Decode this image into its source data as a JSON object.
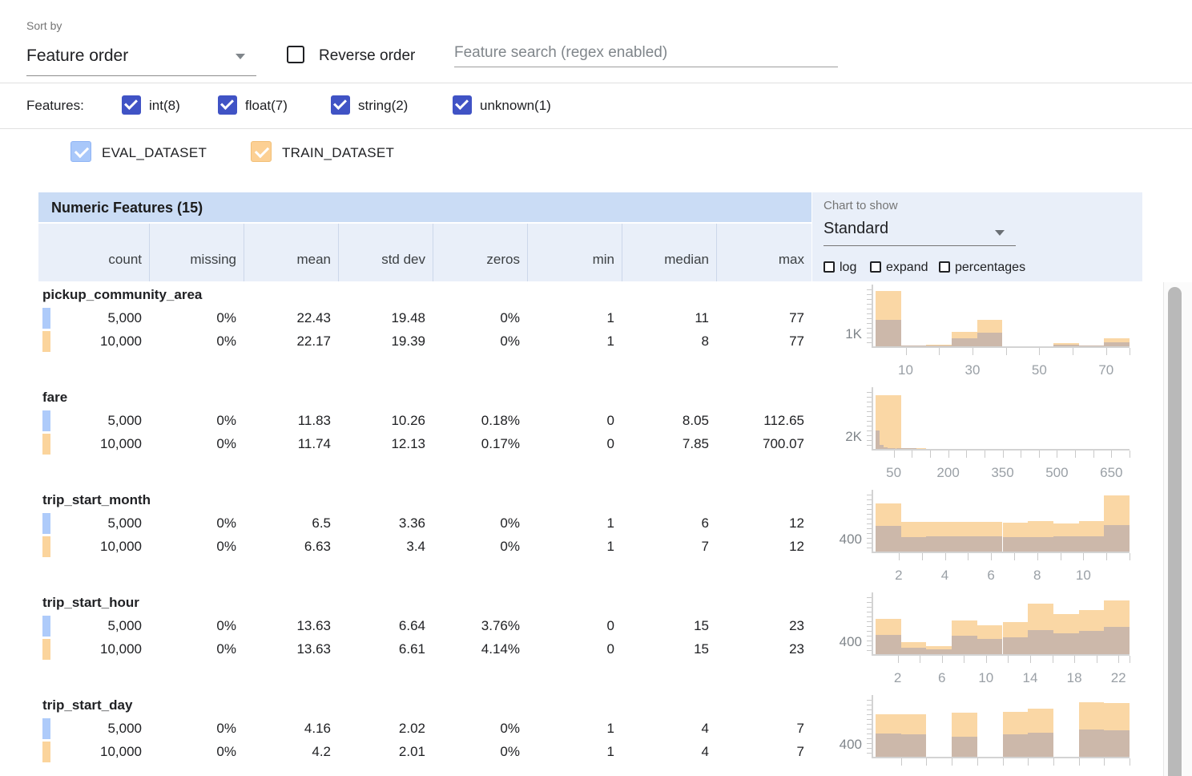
{
  "toolbar": {
    "sort_by_label": "Sort by",
    "sort_by_value": "Feature order",
    "reverse_order_label": "Reverse order",
    "search_placeholder": "Feature search (regex enabled)"
  },
  "features_filter": {
    "label": "Features:",
    "types": [
      {
        "label": "int(8)",
        "checked": true
      },
      {
        "label": "float(7)",
        "checked": true
      },
      {
        "label": "string(2)",
        "checked": true
      },
      {
        "label": "unknown(1)",
        "checked": true
      }
    ]
  },
  "datasets": [
    {
      "label": "EVAL_DATASET",
      "checked": true,
      "checkbox_color": "#a9c8fa",
      "checkbox_border": "#8fb4f5",
      "swatch_color": "#aecbfa"
    },
    {
      "label": "TRAIN_DATASET",
      "checked": true,
      "checkbox_color": "#fcd094",
      "checkbox_border": "#f2bf77",
      "swatch_color": "#fbd49c"
    }
  ],
  "table": {
    "title": "Numeric Features (15)",
    "columns": [
      "count",
      "missing",
      "mean",
      "std dev",
      "zeros",
      "min",
      "median",
      "max"
    ]
  },
  "chart_controls": {
    "label": "Chart to show",
    "value": "Standard",
    "options": [
      {
        "label": "log",
        "checked": false
      },
      {
        "label": "expand",
        "checked": false
      },
      {
        "label": "percentages",
        "checked": false
      }
    ]
  },
  "features": [
    {
      "name": "pickup_community_area",
      "stats": [
        [
          "5,000",
          "0%",
          "22.43",
          "19.48",
          "0%",
          "1",
          "11",
          "77"
        ],
        [
          "10,000",
          "0%",
          "22.17",
          "19.39",
          "0%",
          "1",
          "8",
          "77"
        ]
      ]
    },
    {
      "name": "fare",
      "stats": [
        [
          "5,000",
          "0%",
          "11.83",
          "10.26",
          "0.18%",
          "0",
          "8.05",
          "112.65"
        ],
        [
          "10,000",
          "0%",
          "11.74",
          "12.13",
          "0.17%",
          "0",
          "7.85",
          "700.07"
        ]
      ]
    },
    {
      "name": "trip_start_month",
      "stats": [
        [
          "5,000",
          "0%",
          "6.5",
          "3.36",
          "0%",
          "1",
          "6",
          "12"
        ],
        [
          "10,000",
          "0%",
          "6.63",
          "3.4",
          "0%",
          "1",
          "7",
          "12"
        ]
      ]
    },
    {
      "name": "trip_start_hour",
      "stats": [
        [
          "5,000",
          "0%",
          "13.63",
          "6.64",
          "3.76%",
          "0",
          "15",
          "23"
        ],
        [
          "10,000",
          "0%",
          "13.63",
          "6.61",
          "4.14%",
          "0",
          "15",
          "23"
        ]
      ]
    },
    {
      "name": "trip_start_day",
      "stats": [
        [
          "5,000",
          "0%",
          "4.16",
          "2.02",
          "0%",
          "1",
          "4",
          "7"
        ],
        [
          "10,000",
          "0%",
          "4.2",
          "2.01",
          "0%",
          "1",
          "4",
          "7"
        ]
      ]
    }
  ],
  "chart_data": [
    {
      "type": "bar",
      "title": "pickup_community_area histogram",
      "x_domain": [
        1,
        77
      ],
      "y_max": 4600,
      "y_ref_label": {
        "text": "1K",
        "value": 1000
      },
      "x_tick_labels": [
        {
          "value": 10,
          "text": "10"
        },
        {
          "value": 30,
          "text": "30"
        },
        {
          "value": 50,
          "text": "50"
        },
        {
          "value": 70,
          "text": "70"
        }
      ],
      "x_minor_ticks": [
        10,
        20,
        30,
        40,
        50,
        60,
        70,
        77
      ],
      "series": [
        {
          "name": "TRAIN_DATASET",
          "color": "#fad7a5",
          "bin_start": 1,
          "bin_width": 7.6,
          "counts": [
            4280,
            60,
            125,
            1100,
            2070,
            0,
            0,
            250,
            30,
            640
          ]
        },
        {
          "name": "EVAL_DATASET",
          "color": "#ccb8aa",
          "bin_start": 1,
          "bin_width": 7.6,
          "counts": [
            2070,
            40,
            60,
            620,
            1060,
            0,
            0,
            125,
            15,
            310
          ]
        }
      ]
    },
    {
      "type": "bar",
      "title": "fare histogram",
      "x_domain": [
        0,
        700.07
      ],
      "y_max": 9300,
      "y_ref_label": {
        "text": "2K",
        "value": 2000
      },
      "x_tick_labels": [
        {
          "value": 50,
          "text": "50"
        },
        {
          "value": 200,
          "text": "200"
        },
        {
          "value": 350,
          "text": "350"
        },
        {
          "value": 500,
          "text": "500"
        },
        {
          "value": 650,
          "text": "650"
        }
      ],
      "x_minor_ticks": [
        50,
        100,
        150,
        200,
        250,
        300,
        350,
        400,
        450,
        500,
        550,
        600,
        650,
        700
      ],
      "series": [
        {
          "name": "TRAIN_DATASET",
          "color": "#fad7a5",
          "bin_start": 0,
          "bin_width": 70.007,
          "counts": [
            8400,
            70,
            0,
            0,
            0,
            0,
            0,
            0,
            0,
            0
          ]
        },
        {
          "name": "EVAL_DATASET",
          "color": "#ccb8aa",
          "bin_start": 0,
          "bin_width": 11.265,
          "counts": [
            2950,
            650,
            300,
            150,
            75,
            40,
            25,
            15,
            10,
            5
          ]
        }
      ]
    },
    {
      "type": "bar",
      "title": "trip_start_month histogram",
      "x_domain": [
        1,
        12
      ],
      "y_max": 1850,
      "y_ref_label": {
        "text": "400",
        "value": 400
      },
      "x_tick_labels": [
        {
          "value": 2,
          "text": "2"
        },
        {
          "value": 4,
          "text": "4"
        },
        {
          "value": 6,
          "text": "6"
        },
        {
          "value": 8,
          "text": "8"
        },
        {
          "value": 10,
          "text": "10"
        }
      ],
      "x_minor_ticks": [
        2,
        3,
        4,
        5,
        6,
        7,
        8,
        9,
        10,
        11,
        12
      ],
      "series": [
        {
          "name": "TRAIN_DATASET",
          "color": "#fad7a5",
          "bin_start": 1,
          "bin_width": 1.1,
          "counts": [
            1500,
            925,
            925,
            925,
            925,
            905,
            945,
            870,
            960,
            1760
          ]
        },
        {
          "name": "EVAL_DATASET",
          "color": "#ccb8aa",
          "bin_start": 1,
          "bin_width": 1.1,
          "counts": [
            795,
            445,
            465,
            480,
            465,
            445,
            445,
            465,
            465,
            830
          ]
        }
      ]
    },
    {
      "type": "bar",
      "title": "trip_start_hour histogram",
      "x_domain": [
        0,
        23
      ],
      "y_max": 1850,
      "y_ref_label": {
        "text": "400",
        "value": 400
      },
      "x_tick_labels": [
        {
          "value": 2,
          "text": "2"
        },
        {
          "value": 6,
          "text": "6"
        },
        {
          "value": 10,
          "text": "10"
        },
        {
          "value": 14,
          "text": "14"
        },
        {
          "value": 18,
          "text": "18"
        },
        {
          "value": 22,
          "text": "22"
        }
      ],
      "x_minor_ticks": [
        2,
        4,
        6,
        8,
        10,
        12,
        14,
        16,
        18,
        20,
        22,
        23
      ],
      "series": [
        {
          "name": "TRAIN_DATASET",
          "color": "#fad7a5",
          "bin_start": 0,
          "bin_width": 2.3,
          "counts": [
            1090,
            370,
            240,
            1055,
            905,
            1000,
            1570,
            1260,
            1370,
            1685
          ]
        },
        {
          "name": "EVAL_DATASET",
          "color": "#ccb8aa",
          "bin_start": 0,
          "bin_width": 2.3,
          "counts": [
            590,
            205,
            150,
            575,
            480,
            520,
            760,
            650,
            720,
            850
          ]
        }
      ]
    },
    {
      "type": "bar",
      "title": "trip_start_day histogram",
      "x_domain": [
        1,
        7
      ],
      "y_max": 1850,
      "y_ref_label": {
        "text": "400",
        "value": 400
      },
      "x_tick_labels": [],
      "x_minor_ticks": [
        1.6,
        2.2,
        2.8,
        3.4,
        4.0,
        4.6,
        5.2,
        5.8,
        6.4,
        7.0
      ],
      "series": [
        {
          "name": "TRAIN_DATASET",
          "color": "#fad7a5",
          "bin_start": 1,
          "bin_width": 0.6,
          "counts": [
            1330,
            1330,
            0,
            1370,
            0,
            1405,
            1500,
            0,
            1700,
            1685
          ]
        },
        {
          "name": "EVAL_DATASET",
          "color": "#ccb8aa",
          "bin_start": 1,
          "bin_width": 0.6,
          "counts": [
            720,
            705,
            0,
            630,
            0,
            705,
            760,
            0,
            850,
            835
          ]
        }
      ]
    }
  ],
  "colors": {
    "filter_checkbox": "#4053c5",
    "table_header_bg": "#cadcf5",
    "table_subheader_bg": "#e9eff9",
    "train_bar": "#fad7a5",
    "eval_bar": "#ccb8aa"
  }
}
